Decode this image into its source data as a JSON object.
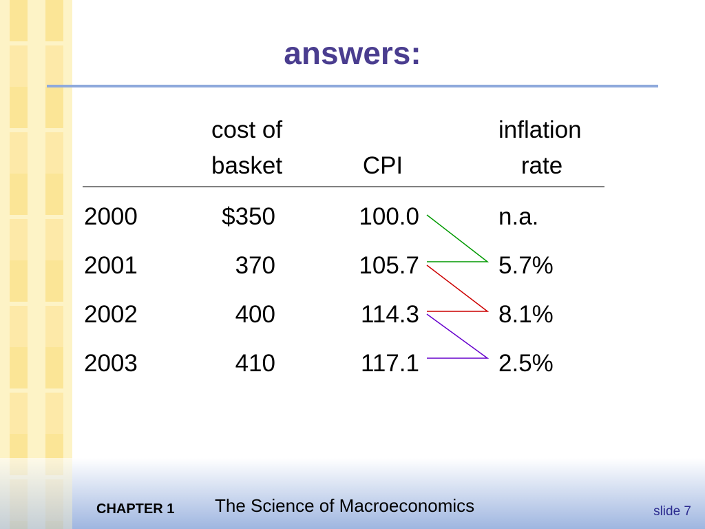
{
  "title": "answers:",
  "table": {
    "columns": [
      [
        "cost of",
        "basket"
      ],
      [
        "CPI"
      ],
      [
        "inflation",
        "rate"
      ]
    ],
    "rows": [
      [
        "2000",
        "$350",
        "100.0",
        "n.a."
      ],
      [
        "2001",
        "370",
        "105.7",
        "5.7%"
      ],
      [
        "2002",
        "400",
        "114.3",
        "8.1%"
      ],
      [
        "2003",
        "410",
        "117.1",
        "2.5%"
      ]
    ]
  },
  "footer": {
    "chapter": "CHAPTER 1",
    "book": "The Science of Macroeconomics",
    "slide": "slide 7"
  }
}
